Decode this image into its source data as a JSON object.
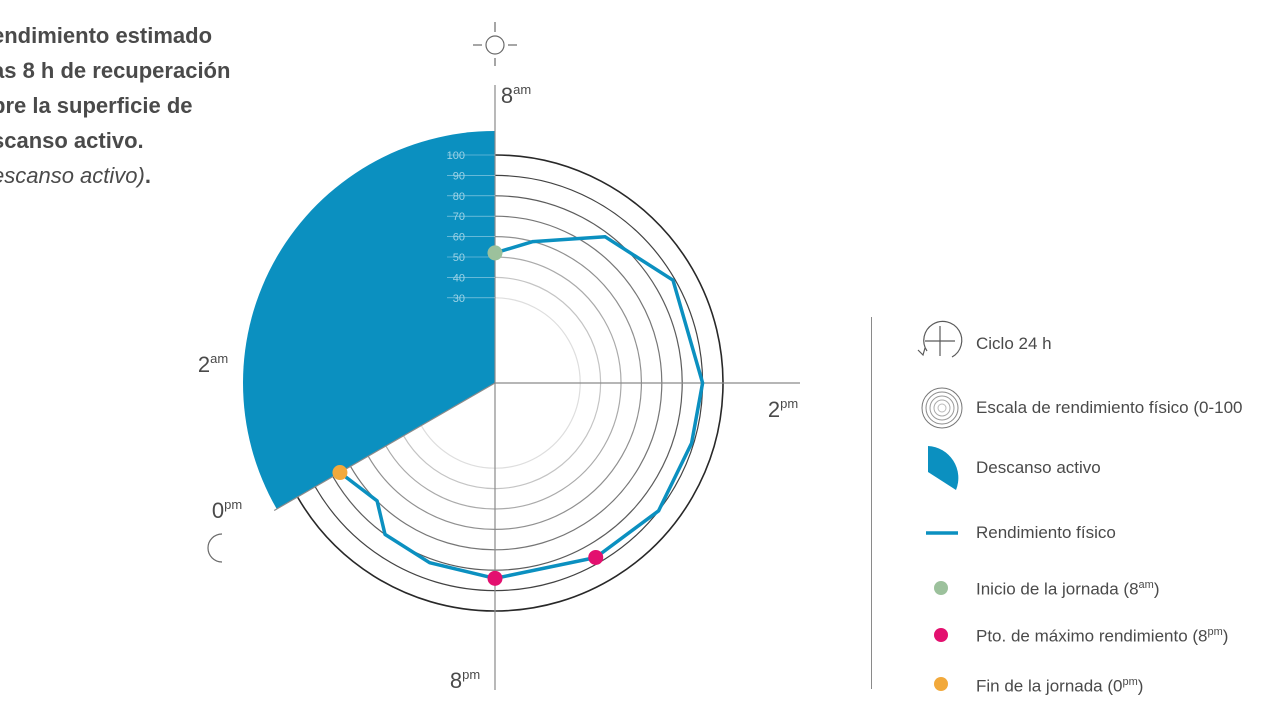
{
  "title": {
    "lines": [
      "endimiento estimado",
      "as 8 h de recuperación",
      "bre la superficie de",
      "scanso activo."
    ],
    "subtitle": "escanso activo)",
    "subtitle_end": "."
  },
  "chart_data": {
    "type": "radial-line",
    "cycle_hours": 24,
    "scale_ticks": [
      30,
      40,
      50,
      60,
      70,
      80,
      90,
      100
    ],
    "scale_range": [
      0,
      100
    ],
    "hour_labels": [
      {
        "base": "8",
        "sup": "am",
        "angle_deg": 0
      },
      {
        "base": "2",
        "sup": "pm",
        "angle_deg": 90
      },
      {
        "base": "8",
        "sup": "pm",
        "angle_deg": 180
      },
      {
        "base": "0",
        "sup": "pm",
        "angle_deg": 240
      },
      {
        "base": "2",
        "sup": "am",
        "angle_deg": 270
      }
    ],
    "rest_sector_deg": [
      240,
      360
    ],
    "series": [
      {
        "name": "Rendimiento físico",
        "color": "#0b90c0",
        "points": [
          {
            "angle_deg": 0,
            "value": 52
          },
          {
            "angle_deg": 15,
            "value": 60
          },
          {
            "angle_deg": 37,
            "value": 78
          },
          {
            "angle_deg": 60,
            "value": 89
          },
          {
            "angle_deg": 90,
            "value": 90
          },
          {
            "angle_deg": 107,
            "value": 89
          },
          {
            "angle_deg": 128,
            "value": 90
          },
          {
            "angle_deg": 150,
            "value": 87
          },
          {
            "angle_deg": 180,
            "value": 84
          },
          {
            "angle_deg": 200,
            "value": 82
          },
          {
            "angle_deg": 216,
            "value": 80
          },
          {
            "angle_deg": 225,
            "value": 70
          },
          {
            "angle_deg": 240,
            "value": 76
          }
        ]
      }
    ],
    "markers": [
      {
        "name": "Inicio de la jornada",
        "angle_deg": 0,
        "value": 52,
        "color": "#9cc19c"
      },
      {
        "name": "Pto. de máximo rendimiento",
        "angle_deg": 150,
        "value": 87,
        "color": "#e3106f"
      },
      {
        "name": "Pto. de máximo rendimiento",
        "angle_deg": 180,
        "value": 84,
        "color": "#e3106f"
      },
      {
        "name": "Fin de la jornada",
        "angle_deg": 240,
        "value": 76,
        "color": "#f2a93b"
      }
    ],
    "colors": {
      "rest": "#0b90c0",
      "line": "#0b90c0",
      "start": "#9cc19c",
      "peak": "#e3106f",
      "end": "#f2a93b",
      "axis": "#8a8a8a"
    }
  },
  "legend": {
    "items": [
      {
        "base": "Ciclo 24 h",
        "sup": "",
        "tail": "",
        "icon": "cycle-icon"
      },
      {
        "base": "Escala de rendimiento físico (0-100",
        "sup": "",
        "tail": "",
        "icon": "scale-rings-icon"
      },
      {
        "base": "Descanso activo",
        "sup": "",
        "tail": "",
        "icon": "rest-sector-icon"
      },
      {
        "base": "Rendimiento físico",
        "sup": "",
        "tail": "",
        "icon": "line-icon"
      },
      {
        "base": "Inicio de la jornada (8",
        "sup": "am",
        "tail": ")",
        "icon": "start-dot-icon"
      },
      {
        "base": "Pto. de máximo rendimiento (8",
        "sup": "pm",
        "tail": ")",
        "icon": "peak-dot-icon"
      },
      {
        "base": "Fin de la jornada (0",
        "sup": "pm",
        "tail": ")",
        "icon": "end-dot-icon"
      }
    ]
  },
  "symbols": {
    "day": "sun-icon",
    "night": "moon-icon"
  }
}
